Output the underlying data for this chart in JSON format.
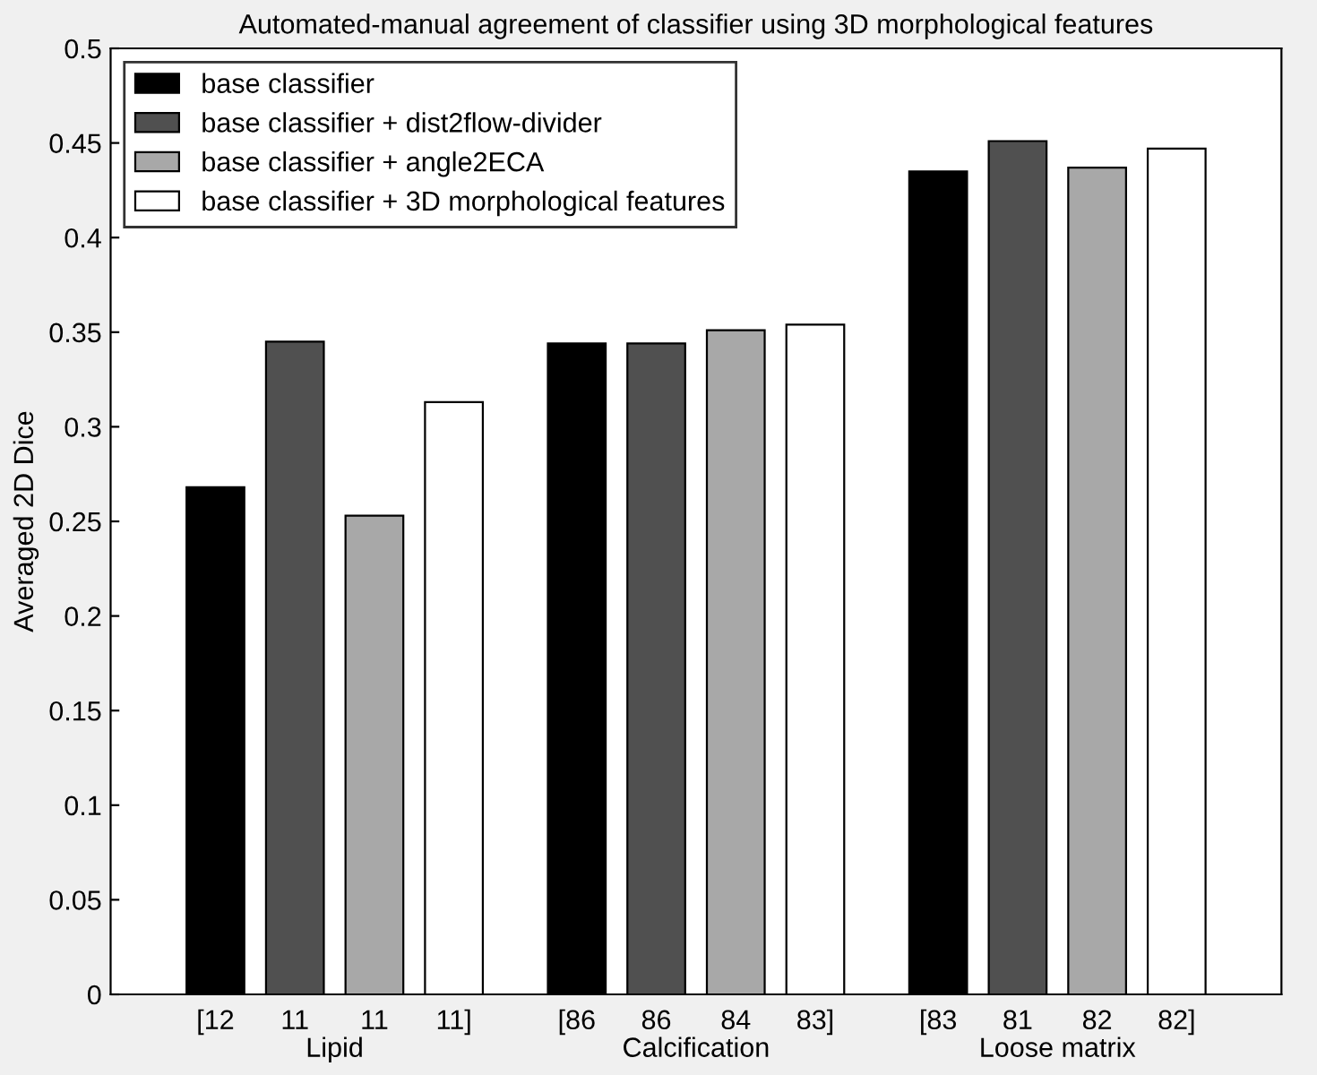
{
  "chart_data": {
    "type": "bar",
    "title": "Automated-manual agreement of classifier using 3D morphological features",
    "ylabel": "Averaged 2D Dice",
    "categories": [
      "Lipid",
      "Calcification",
      "Loose matrix"
    ],
    "series": [
      {
        "name": "base classifier",
        "color": "#000000",
        "values": [
          0.268,
          0.344,
          0.435
        ]
      },
      {
        "name": "base classifier + dist2flow-divider",
        "color": "#505050",
        "values": [
          0.345,
          0.344,
          0.451
        ]
      },
      {
        "name": "base classifier + angle2ECA",
        "color": "#a8a8a8",
        "values": [
          0.253,
          0.351,
          0.437
        ]
      },
      {
        "name": "base classifier + 3D morphological features",
        "color": "#ffffff",
        "values": [
          0.313,
          0.354,
          0.447
        ]
      }
    ],
    "annotations": [
      "[12",
      "11",
      "11",
      "11]",
      "[86",
      "86",
      "84",
      "83]",
      "[83",
      "81",
      "82",
      "82]"
    ],
    "ylim": [
      0,
      0.5
    ],
    "yticks": [
      0,
      0.05,
      0.1,
      0.15,
      0.2,
      0.25,
      0.3,
      0.35,
      0.4,
      0.45,
      0.5
    ],
    "legend": "top left",
    "grid": false
  }
}
